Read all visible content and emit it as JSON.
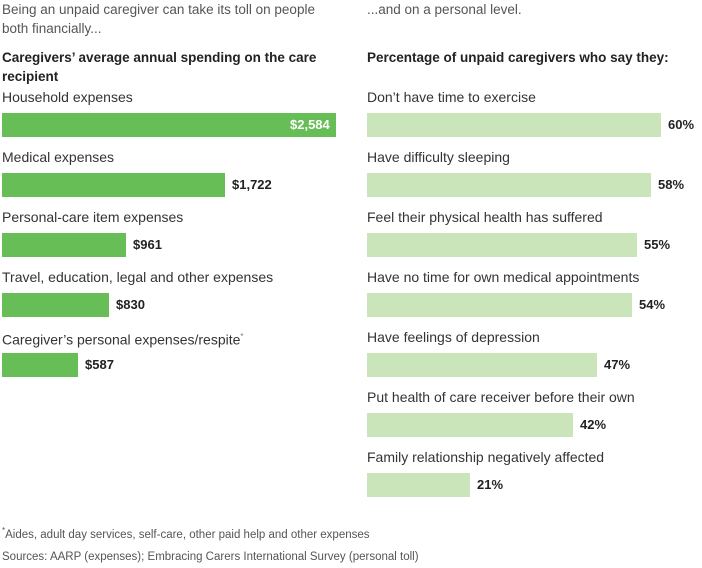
{
  "left": {
    "intro": "Being an unpaid caregiver can take its toll on people both financially...",
    "title": "Caregivers’ average annual spending on the care recipient"
  },
  "right": {
    "intro": "...and on a personal level.",
    "title": "Percentage of unpaid caregivers who say they:"
  },
  "chart_data": [
    {
      "type": "bar",
      "orientation": "horizontal",
      "title": "Caregivers’ average annual spending on the care recipient",
      "categories": [
        "Household expenses",
        "Medical expenses",
        "Personal-care item expenses",
        "Travel, education, legal and other expenses",
        "Caregiver’s personal expenses/respite"
      ],
      "values": [
        2584,
        1722,
        961,
        830,
        587
      ],
      "value_labels": [
        "$2,584",
        "$1,722",
        "$961",
        "$830",
        "$587"
      ],
      "xlim": [
        0,
        2584
      ],
      "color": "#67be56"
    },
    {
      "type": "bar",
      "orientation": "horizontal",
      "title": "Percentage of unpaid caregivers who say they:",
      "categories": [
        "Don’t have time to exercise",
        "Have difficulty sleeping",
        "Feel their physical health has suffered",
        "Have no time for own medical appointments",
        "Have feelings of depression",
        "Put health of care receiver before their own",
        "Family relationship negatively affected"
      ],
      "values": [
        60,
        58,
        55,
        54,
        47,
        42,
        21
      ],
      "value_labels": [
        "60%",
        "58%",
        "55%",
        "54%",
        "47%",
        "42%",
        "21%"
      ],
      "xlim": [
        0,
        60
      ],
      "color": "#c9e5b9"
    }
  ],
  "notes": {
    "footnote_marker": "*",
    "footnote": "Aides, adult day services, self-care, other paid help and other expenses",
    "sources": "Sources: AARP (expenses); Embracing Carers International Survey (personal toll)"
  }
}
